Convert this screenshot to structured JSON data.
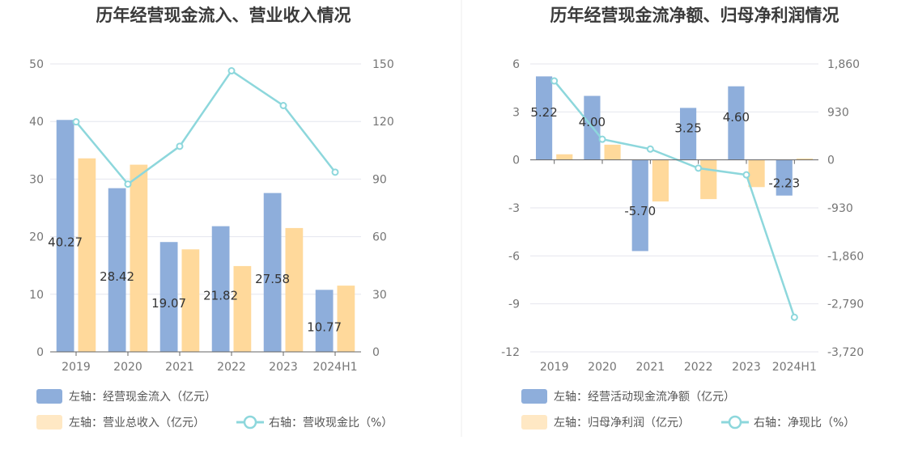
{
  "chart_data": [
    {
      "type": "bar",
      "title": "历年经营现金流入、营业收入情况",
      "categories": [
        "2019",
        "2020",
        "2021",
        "2022",
        "2023",
        "2024H1"
      ],
      "y_left": {
        "ticks": [
          "0",
          "10",
          "20",
          "30",
          "40",
          "50"
        ],
        "ylim": [
          0,
          50
        ]
      },
      "y_right": {
        "ticks": [
          "0",
          "30",
          "60",
          "90",
          "120",
          "150"
        ],
        "ylim": [
          0,
          150
        ]
      },
      "grid": true,
      "legend_position": "bottom-left",
      "series": [
        {
          "name": "左轴：经营现金流入（亿元）",
          "type": "bar",
          "axis": "left",
          "color": "#8eaedb",
          "values": [
            40.27,
            28.42,
            19.07,
            21.82,
            27.58,
            10.77
          ],
          "labels": [
            "40.27",
            "28.42",
            "19.07",
            "21.82",
            "27.58",
            "10.77"
          ]
        },
        {
          "name": "左轴：营业总收入（亿元）",
          "type": "bar",
          "axis": "left",
          "color": "#ffd99b",
          "values": [
            33.6,
            32.5,
            17.8,
            14.9,
            21.5,
            11.5
          ]
        },
        {
          "name": "右轴：营收现金比（%）",
          "type": "line",
          "axis": "right",
          "color": "#8dd7dc",
          "values": [
            119.8,
            87.4,
            107.1,
            146.4,
            128.3,
            93.6
          ]
        }
      ]
    },
    {
      "type": "bar",
      "title": "历年经营现金流净额、归母净利润情况",
      "categories": [
        "2019",
        "2020",
        "2021",
        "2022",
        "2023",
        "2024H1"
      ],
      "y_left": {
        "ticks": [
          "-12",
          "-9",
          "-6",
          "-3",
          "0",
          "3",
          "6"
        ],
        "ylim": [
          -12,
          6
        ]
      },
      "y_right": {
        "ticks": [
          "-3,720",
          "-2,790",
          "-1,860",
          "-930",
          "0",
          "930",
          "1,860"
        ],
        "ylim": [
          -3720,
          1860
        ]
      },
      "grid": true,
      "legend_position": "bottom-left",
      "series": [
        {
          "name": "左轴：经营活动现金流净额（亿元）",
          "type": "bar",
          "axis": "left",
          "color": "#8eaedb",
          "values": [
            5.22,
            4.0,
            -5.7,
            3.25,
            4.6,
            -2.23
          ],
          "labels": [
            "5.22",
            "4.00",
            "-5.70",
            "3.25",
            "4.60",
            "-2.23"
          ]
        },
        {
          "name": "左轴：归母净利润（亿元）",
          "type": "bar",
          "axis": "left",
          "color": "#ffd99b",
          "values": [
            0.35,
            0.95,
            -2.6,
            -2.45,
            -1.7,
            0.08
          ]
        },
        {
          "name": "右轴：净现比（%）",
          "type": "line",
          "axis": "right",
          "color": "#8dd7dc",
          "values": [
            1530,
            400,
            210,
            -160,
            -290,
            -3050
          ]
        }
      ]
    }
  ]
}
